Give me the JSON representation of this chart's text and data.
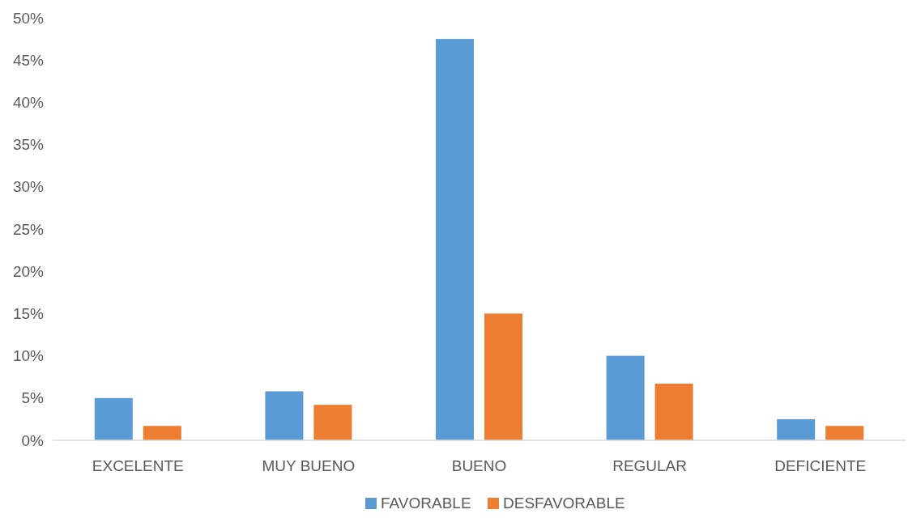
{
  "chart_data": {
    "type": "bar",
    "categories": [
      "EXCELENTE",
      "MUY BUENO",
      "BUENO",
      "REGULAR",
      "DEFICIENTE"
    ],
    "series": [
      {
        "name": "FAVORABLE",
        "color": "#5b9bd5",
        "values": [
          5,
          5.8,
          47.5,
          10,
          2.5
        ]
      },
      {
        "name": "DESFAVORABLE",
        "color": "#ed7d31",
        "values": [
          1.7,
          4.2,
          15,
          6.7,
          1.7
        ]
      }
    ],
    "ylim": [
      0,
      50
    ],
    "yticks": [
      {
        "value": 0,
        "label": "0%"
      },
      {
        "value": 5,
        "label": "5%"
      },
      {
        "value": 10,
        "label": "10%"
      },
      {
        "value": 15,
        "label": "15%"
      },
      {
        "value": 20,
        "label": "20%"
      },
      {
        "value": 25,
        "label": "25%"
      },
      {
        "value": 30,
        "label": "30%"
      },
      {
        "value": 35,
        "label": "35%"
      },
      {
        "value": 40,
        "label": "40%"
      },
      {
        "value": 45,
        "label": "45%"
      },
      {
        "value": 50,
        "label": "50%"
      }
    ],
    "grid": false,
    "legend": "bottom"
  }
}
